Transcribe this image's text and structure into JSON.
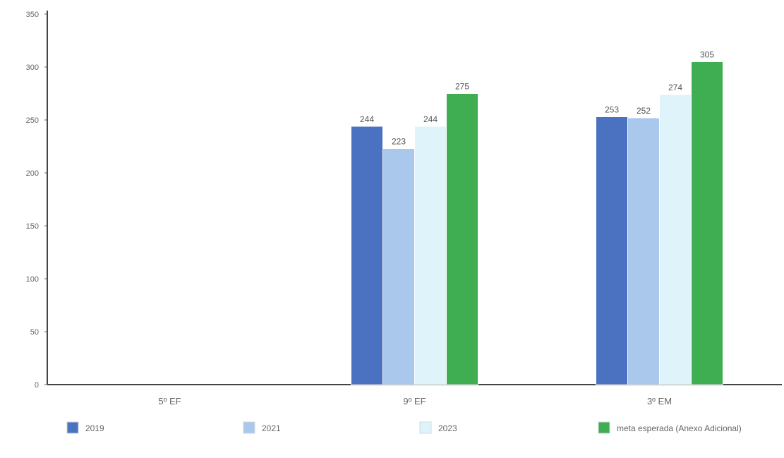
{
  "chart_data": {
    "type": "bar",
    "title": "",
    "xlabel": "",
    "ylabel": "",
    "ylim": [
      0,
      350
    ],
    "yticks": [
      0,
      50,
      100,
      150,
      200,
      250,
      300,
      350
    ],
    "categories": [
      "5º EF",
      "9º EF",
      "3º EM"
    ],
    "series": [
      {
        "name": "2019",
        "color": "#4a72c0",
        "values": [
          null,
          244,
          253
        ]
      },
      {
        "name": "2021",
        "color": "#a9c8ec",
        "values": [
          null,
          223,
          252
        ]
      },
      {
        "name": "2023",
        "color": "#dff3fa",
        "values": [
          null,
          244,
          274
        ]
      },
      {
        "name": "meta esperada (Anexo Adicional)",
        "color": "#3fad52",
        "values": [
          null,
          275,
          305
        ]
      }
    ],
    "legend_position": "bottom",
    "grid": false
  }
}
